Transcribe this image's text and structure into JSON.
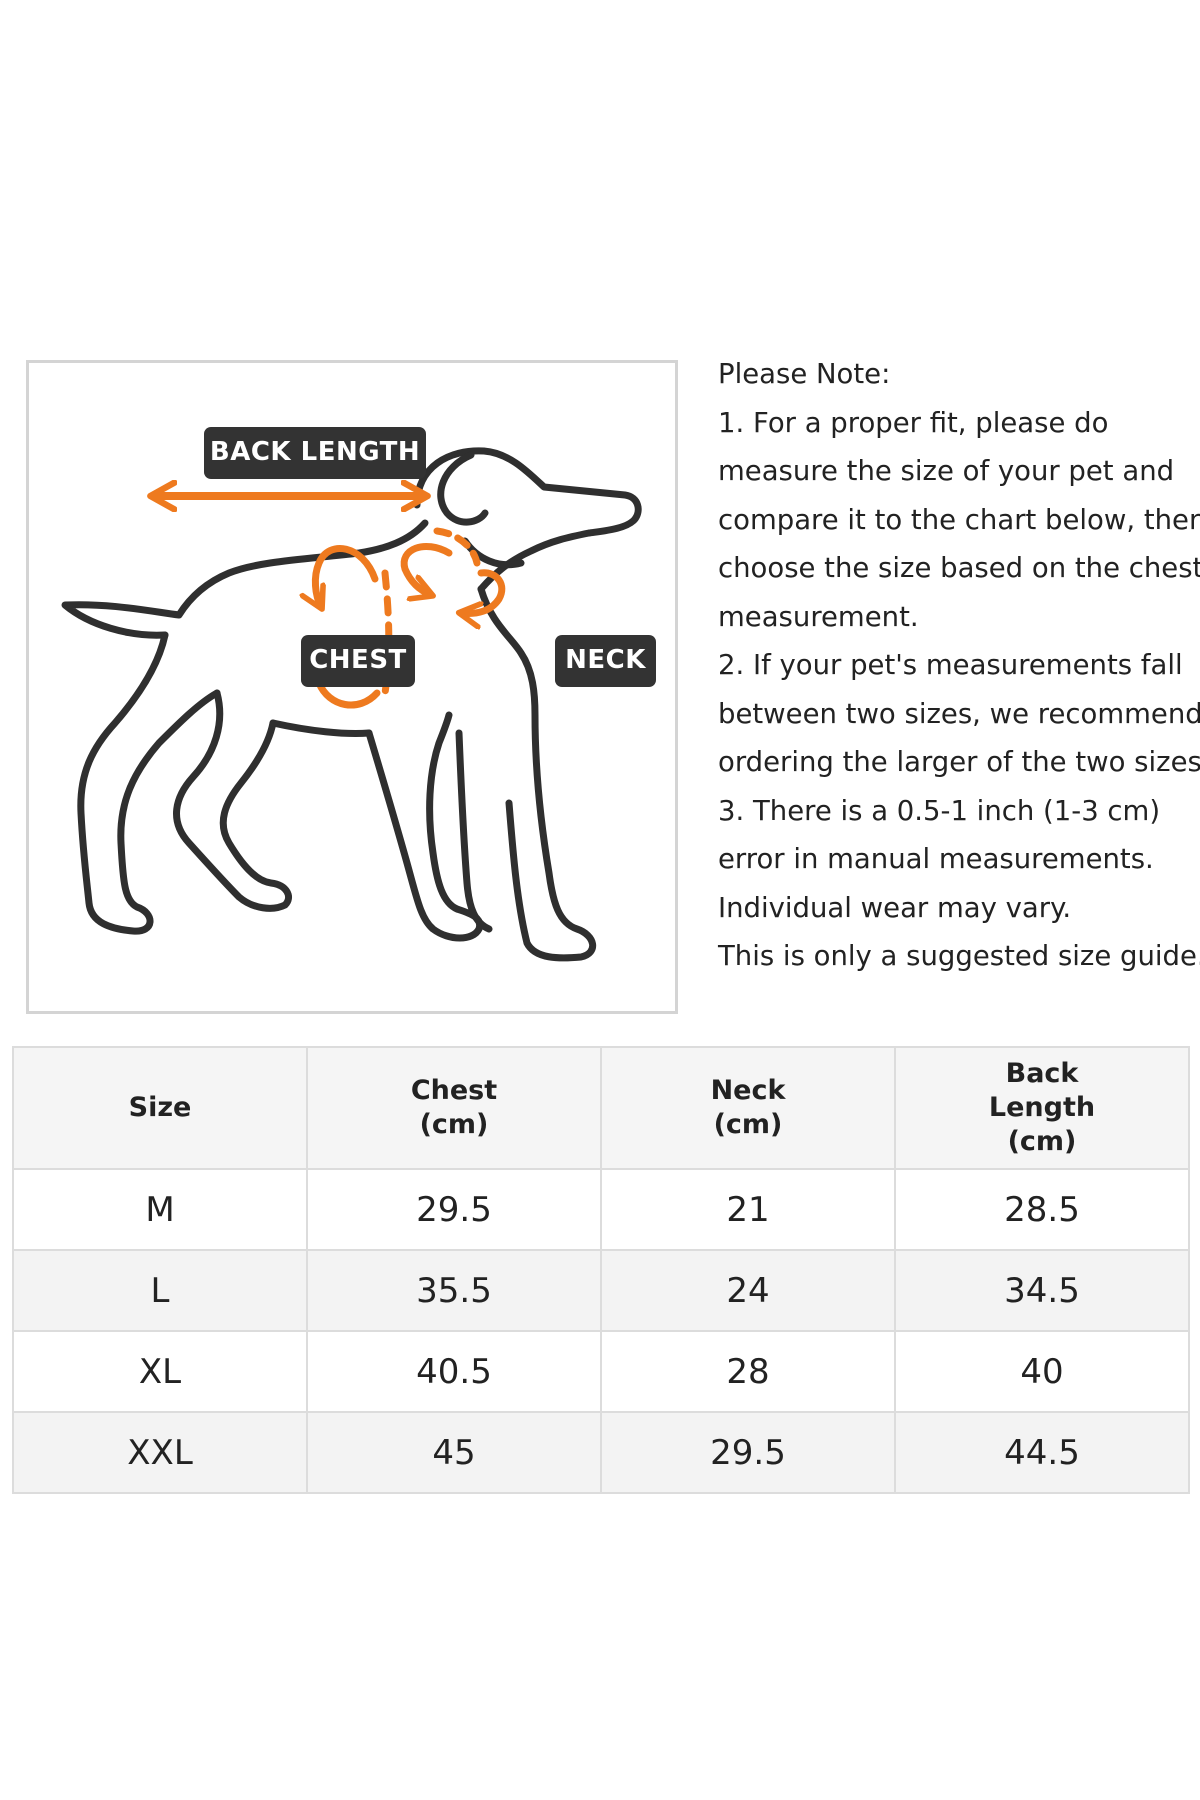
{
  "diagram": {
    "labels": {
      "back_length": "BACK LENGTH",
      "chest": "CHEST",
      "neck": "NECK"
    },
    "colors": {
      "arrow": "#ee7a1f",
      "outline": "#2f2f2f",
      "tag_bg": "#333333"
    }
  },
  "note": {
    "lines": [
      "Please Note:",
      "1. For a proper fit, please do",
      "measure the size of your pet and",
      "compare it to the chart below, then",
      "choose the size based on the chest",
      "measurement.",
      "2. If your pet's measurements fall",
      "between two sizes, we recommend",
      "ordering the larger of the two sizes.",
      "3. There is a 0.5-1 inch (1-3 cm)",
      "error in manual measurements.",
      "Individual wear may vary.",
      "This is only a suggested size guide."
    ]
  },
  "table": {
    "headers": [
      [
        "Size"
      ],
      [
        "Chest",
        "(cm)"
      ],
      [
        "Neck",
        "(cm)"
      ],
      [
        "Back",
        "Length",
        "(cm)"
      ]
    ],
    "rows": [
      [
        "M",
        "29.5",
        "21",
        "28.5"
      ],
      [
        "L",
        "35.5",
        "24",
        "34.5"
      ],
      [
        "XL",
        "40.5",
        "28",
        "40"
      ],
      [
        "XXL",
        "45",
        "29.5",
        "44.5"
      ]
    ]
  }
}
